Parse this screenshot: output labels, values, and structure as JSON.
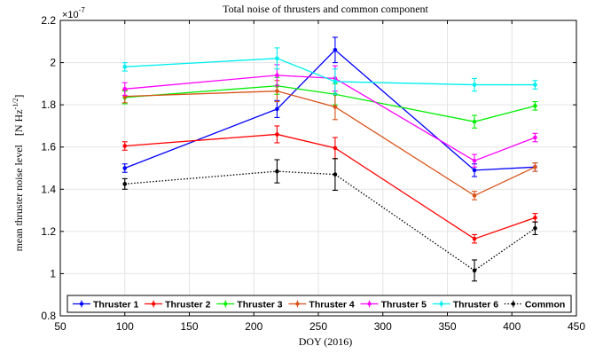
{
  "chart_data": {
    "type": "line",
    "title": "Total noise of thrusters and common component",
    "xlabel": "DOY (2016)",
    "ylabel": "mean thruster noise level",
    "ylabel_unit": "[N Hz",
    "ylabel_unit_exp": "-1/2",
    "ylabel_unit_close": "]",
    "exponent_label": "×10",
    "exponent_power": "-7",
    "xlim": [
      50,
      450
    ],
    "ylim": [
      0.8,
      2.2
    ],
    "x_ticks": [
      "50",
      "100",
      "150",
      "200",
      "250",
      "300",
      "350",
      "400",
      "450"
    ],
    "y_ticks": [
      "0.8",
      "1",
      "1.2",
      "1.4",
      "1.6",
      "1.8",
      "2",
      "2.2"
    ],
    "x_tick_values": [
      50,
      100,
      150,
      200,
      250,
      300,
      350,
      400,
      450
    ],
    "y_tick_values": [
      0.8,
      1.0,
      1.2,
      1.4,
      1.6,
      1.8,
      2.0,
      2.2
    ],
    "grid": true,
    "legend_position": "bottom",
    "x": [
      100,
      218,
      263,
      371,
      418
    ],
    "series": [
      {
        "name": "Thruster 1",
        "color": "#0000ff",
        "dash": "solid",
        "values": [
          1.5,
          1.78,
          2.06,
          1.49,
          1.505
        ],
        "errors": [
          0.02,
          0.04,
          0.06,
          0.03,
          0.02
        ]
      },
      {
        "name": "Thruster 2",
        "color": "#ff0000",
        "dash": "solid",
        "values": [
          1.605,
          1.66,
          1.595,
          1.165,
          1.265
        ],
        "errors": [
          0.02,
          0.04,
          0.05,
          0.02,
          0.02
        ]
      },
      {
        "name": "Thruster 3",
        "color": "#00ee00",
        "dash": "solid",
        "values": [
          1.835,
          1.89,
          1.85,
          1.72,
          1.795
        ],
        "errors": [
          0.03,
          0.04,
          0.05,
          0.03,
          0.02
        ]
      },
      {
        "name": "Thruster 4",
        "color": "#d95319",
        "dash": "solid",
        "values": [
          1.84,
          1.865,
          1.79,
          1.37,
          1.505
        ],
        "errors": [
          0.03,
          0.05,
          0.06,
          0.02,
          0.02
        ]
      },
      {
        "name": "Thruster 5",
        "color": "#ff00ff",
        "dash": "solid",
        "values": [
          1.875,
          1.94,
          1.925,
          1.535,
          1.645
        ],
        "errors": [
          0.03,
          0.05,
          0.06,
          0.03,
          0.02
        ]
      },
      {
        "name": "Thruster 6",
        "color": "#00eeee",
        "dash": "solid",
        "values": [
          1.98,
          2.02,
          1.91,
          1.895,
          1.895
        ],
        "errors": [
          0.02,
          0.05,
          0.06,
          0.03,
          0.02
        ]
      },
      {
        "name": "Common",
        "color": "#000000",
        "dash": "dotted",
        "values": [
          1.425,
          1.485,
          1.47,
          1.015,
          1.215
        ],
        "errors": [
          0.025,
          0.055,
          0.075,
          0.05,
          0.03
        ]
      }
    ]
  }
}
